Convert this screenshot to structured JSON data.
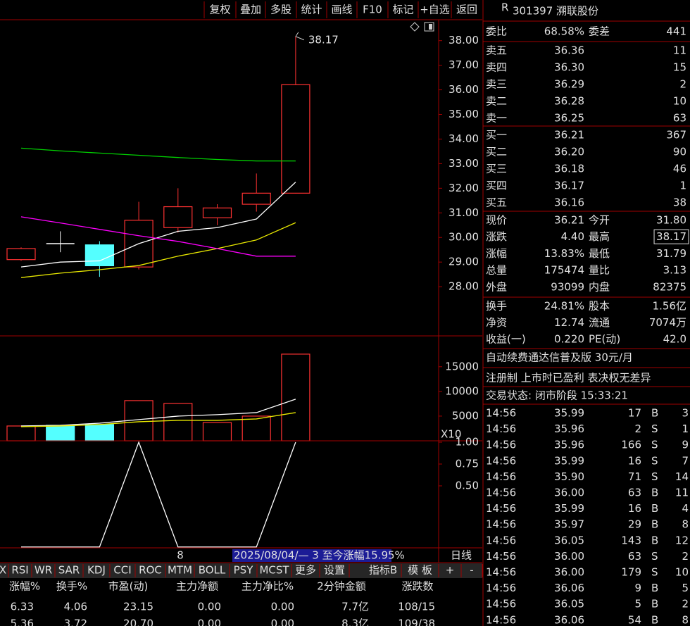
{
  "toolbar": [
    "复权",
    "叠加",
    "多股",
    "统计",
    "画线",
    "F10",
    "标记",
    "+自选",
    "返回"
  ],
  "chart_data": [
    {
      "type": "candlestick",
      "categories": [
        null,
        null,
        null,
        null,
        null,
        null,
        null,
        null
      ],
      "open": [
        29.1,
        29.75,
        29.7,
        28.8,
        30.4,
        30.8,
        31.35,
        31.8
      ],
      "close": [
        29.55,
        29.75,
        28.85,
        30.7,
        31.25,
        31.2,
        31.8,
        36.21
      ],
      "high": [
        29.6,
        30.25,
        29.85,
        31.45,
        32.0,
        31.35,
        32.6,
        38.17
      ],
      "low": [
        29.05,
        29.4,
        28.4,
        28.7,
        30.2,
        30.5,
        31.05,
        31.79
      ],
      "up_color": "#ff3232",
      "down_color": "#54ffff",
      "doji_color": "#ffffff",
      "series": [
        {
          "color": "#ffffff",
          "values": [
            28.8,
            29.0,
            29.05,
            29.75,
            30.25,
            30.4,
            30.75,
            32.25
          ]
        },
        {
          "color": "#e8e800",
          "values": [
            28.37,
            28.55,
            28.69,
            28.86,
            29.24,
            29.55,
            29.9,
            30.6
          ]
        },
        {
          "color": "#00d000",
          "values": [
            33.63,
            33.52,
            33.43,
            33.34,
            33.25,
            33.17,
            33.11,
            33.11
          ]
        },
        {
          "color": "#ff00ff",
          "values": [
            30.84,
            30.59,
            30.33,
            30.07,
            29.84,
            29.55,
            29.24,
            29.24
          ]
        }
      ],
      "annotation": "38.17",
      "ylim": [
        26.0,
        38.85
      ],
      "yticks": [
        {
          "value": 28,
          "label": "28.00"
        },
        {
          "value": 29,
          "label": "29.00"
        },
        {
          "value": 30,
          "label": "30.00"
        },
        {
          "value": 31,
          "label": "31.00"
        },
        {
          "value": 32,
          "label": "32.00"
        },
        {
          "value": 33,
          "label": "33.00"
        },
        {
          "value": 34,
          "label": "34.00"
        },
        {
          "value": 35,
          "label": "35.00"
        },
        {
          "value": 36,
          "label": "36.00"
        },
        {
          "value": 37,
          "label": "37.00"
        },
        {
          "value": 38,
          "label": "38.00"
        }
      ]
    },
    {
      "type": "bar",
      "categories": [
        null,
        null,
        null,
        null,
        null,
        null,
        null,
        null
      ],
      "values": [
        3000,
        3140,
        3300,
        8140,
        7570,
        3700,
        5000,
        17547
      ],
      "colors": [
        "#ff3232",
        "#54ffff",
        "#54ffff",
        "#ff3232",
        "#ff3232",
        "#ff3232",
        "#ff3232",
        "#ff3232"
      ],
      "filled": [
        false,
        true,
        true,
        false,
        false,
        false,
        false,
        false
      ],
      "series": [
        {
          "color": "#ffffff",
          "values": [
            3000,
            3140,
            3570,
            4290,
            5000,
            5290,
            5710,
            8430
          ]
        },
        {
          "color": "#e8e800",
          "values": [
            2860,
            3000,
            3290,
            3860,
            4140,
            4140,
            4430,
            5710
          ]
        }
      ],
      "unit_label": "X10",
      "ylim": [
        0,
        21100
      ],
      "yticks": [
        5000,
        10000,
        15000
      ]
    },
    {
      "type": "line",
      "categories": [
        null,
        null,
        null,
        null,
        null,
        null,
        null,
        null
      ],
      "series": [
        {
          "color": "#ffffff",
          "values": [
            -0.2,
            -0.2,
            -0.2,
            1.0,
            -0.2,
            -0.2,
            -0.2,
            1.0
          ]
        }
      ],
      "ylim": [
        -0.21,
        1.0
      ],
      "yticks": [
        {
          "value": 0.5,
          "label": "0.50"
        },
        {
          "value": 0.75,
          "label": "0.75"
        },
        {
          "value": 1,
          "label": "1.00"
        }
      ]
    }
  ],
  "status_bar": {
    "cursor": "8",
    "range": "2025/08/04/— 3 至今涨幅15.95%",
    "period": "日线"
  },
  "tabs": [
    "X",
    "RSI",
    "WR",
    "SAR",
    "KDJ",
    "CCI",
    "ROC",
    "MTM",
    "BOLL",
    "PSY",
    "MCST",
    "更多",
    "设置",
    "指标B",
    "模 板",
    "+",
    "-"
  ],
  "table": {
    "headers": [
      "涨幅%",
      "换手%",
      "市盈(动)",
      "主力净额",
      "主力净比%",
      "2分钟金额",
      "涨跌数"
    ],
    "column_colors": [
      "#ff3232",
      "#e0e0e0",
      "#e0e0e0",
      "#e0e0e0",
      "#e0e0e0",
      "#54ffff",
      "#e0e0e0"
    ],
    "rows": [
      [
        "6.33",
        "4.06",
        "23.15",
        "0.00",
        "0.00",
        "7.7亿",
        "108/15"
      ],
      [
        "5.36",
        "3.72",
        "20.70",
        "0.00",
        "0.00",
        "8.3亿",
        "109/38"
      ]
    ]
  },
  "quote": {
    "badge": "R",
    "title": "301397 溯联股份",
    "ratio": [
      {
        "label": "委比",
        "value": "68.58%"
      },
      {
        "label": "委差",
        "value": "441"
      }
    ],
    "asks": [
      {
        "label": "卖五",
        "price": "36.36",
        "volume": "11"
      },
      {
        "label": "卖四",
        "price": "36.30",
        "volume": "15"
      },
      {
        "label": "卖三",
        "price": "36.29",
        "volume": "2"
      },
      {
        "label": "卖二",
        "price": "36.28",
        "volume": "10"
      },
      {
        "label": "卖一",
        "price": "36.25",
        "volume": "63"
      }
    ],
    "bids": [
      {
        "label": "买一",
        "price": "36.21",
        "volume": "367"
      },
      {
        "label": "买二",
        "price": "36.20",
        "volume": "90"
      },
      {
        "label": "买三",
        "price": "36.18",
        "volume": "46"
      },
      {
        "label": "买四",
        "price": "36.17",
        "volume": "1"
      },
      {
        "label": "买五",
        "price": "36.16",
        "volume": "38"
      }
    ],
    "stats": [
      [
        {
          "label": "现价",
          "value": "36.21",
          "color": "#ff3232"
        },
        {
          "label": "今开",
          "value": "31.80",
          "color": "#00d000"
        }
      ],
      [
        {
          "label": "涨跌",
          "value": "4.40",
          "color": "#ff3232"
        },
        {
          "label": "最高",
          "value": "38.17",
          "color": "#ff3232",
          "boxed": true
        }
      ],
      [
        {
          "label": "涨幅",
          "value": "13.83%",
          "color": "#ff3232"
        },
        {
          "label": "最低",
          "value": "31.79",
          "color": "#00d000"
        }
      ],
      [
        {
          "label": "总量",
          "value": "175474",
          "color": "#e8e800"
        },
        {
          "label": "量比",
          "value": "3.13",
          "color": "#ff00ff"
        }
      ],
      [
        {
          "label": "外盘",
          "value": "93099",
          "color": "#ff3232"
        },
        {
          "label": "内盘",
          "value": "82375",
          "color": "#00d000"
        }
      ]
    ],
    "info": [
      [
        {
          "label": "换手",
          "value": "24.81%"
        },
        {
          "label": "股本",
          "value": "1.56亿"
        }
      ],
      [
        {
          "label": "净资",
          "value": "12.74"
        },
        {
          "label": "流通",
          "value": "7074万"
        }
      ],
      [
        {
          "label": "收益(一)",
          "value": "0.220"
        },
        {
          "label": "PE(动)",
          "value": "42.0"
        }
      ]
    ],
    "notice": "自动续费通达信普及版  30元/月",
    "tags": "注册制 上市时已盈利 表决权无差异",
    "status": "交易状态: 闭市阶段 15:33:21",
    "trade_column_colors": [
      "#e0e0e0",
      "#ff3232",
      "#e8e800",
      null,
      "#e0e0e0"
    ],
    "side_colors": {
      "B": "#ff3232",
      "S": "#00d000"
    },
    "trades": [
      [
        "14:56",
        "35.99",
        "17",
        "B",
        "3"
      ],
      [
        "14:56",
        "35.96",
        "2",
        "S",
        "1"
      ],
      [
        "14:56",
        "35.96",
        "166",
        "S",
        "9"
      ],
      [
        "14:56",
        "35.99",
        "16",
        "S",
        "7"
      ],
      [
        "14:56",
        "35.90",
        "71",
        "S",
        "14"
      ],
      [
        "14:56",
        "36.00",
        "63",
        "B",
        "11"
      ],
      [
        "14:56",
        "35.99",
        "16",
        "B",
        "4"
      ],
      [
        "14:56",
        "35.97",
        "29",
        "B",
        "8"
      ],
      [
        "14:56",
        "36.05",
        "143",
        "B",
        "12"
      ],
      [
        "14:56",
        "36.00",
        "63",
        "S",
        "2"
      ],
      [
        "14:56",
        "36.00",
        "179",
        "S",
        "10"
      ],
      [
        "14:56",
        "36.06",
        "9",
        "B",
        "5"
      ],
      [
        "14:56",
        "36.05",
        "5",
        "B",
        "2"
      ],
      [
        "14:56",
        "36.06",
        "54",
        "B",
        "8"
      ]
    ]
  }
}
